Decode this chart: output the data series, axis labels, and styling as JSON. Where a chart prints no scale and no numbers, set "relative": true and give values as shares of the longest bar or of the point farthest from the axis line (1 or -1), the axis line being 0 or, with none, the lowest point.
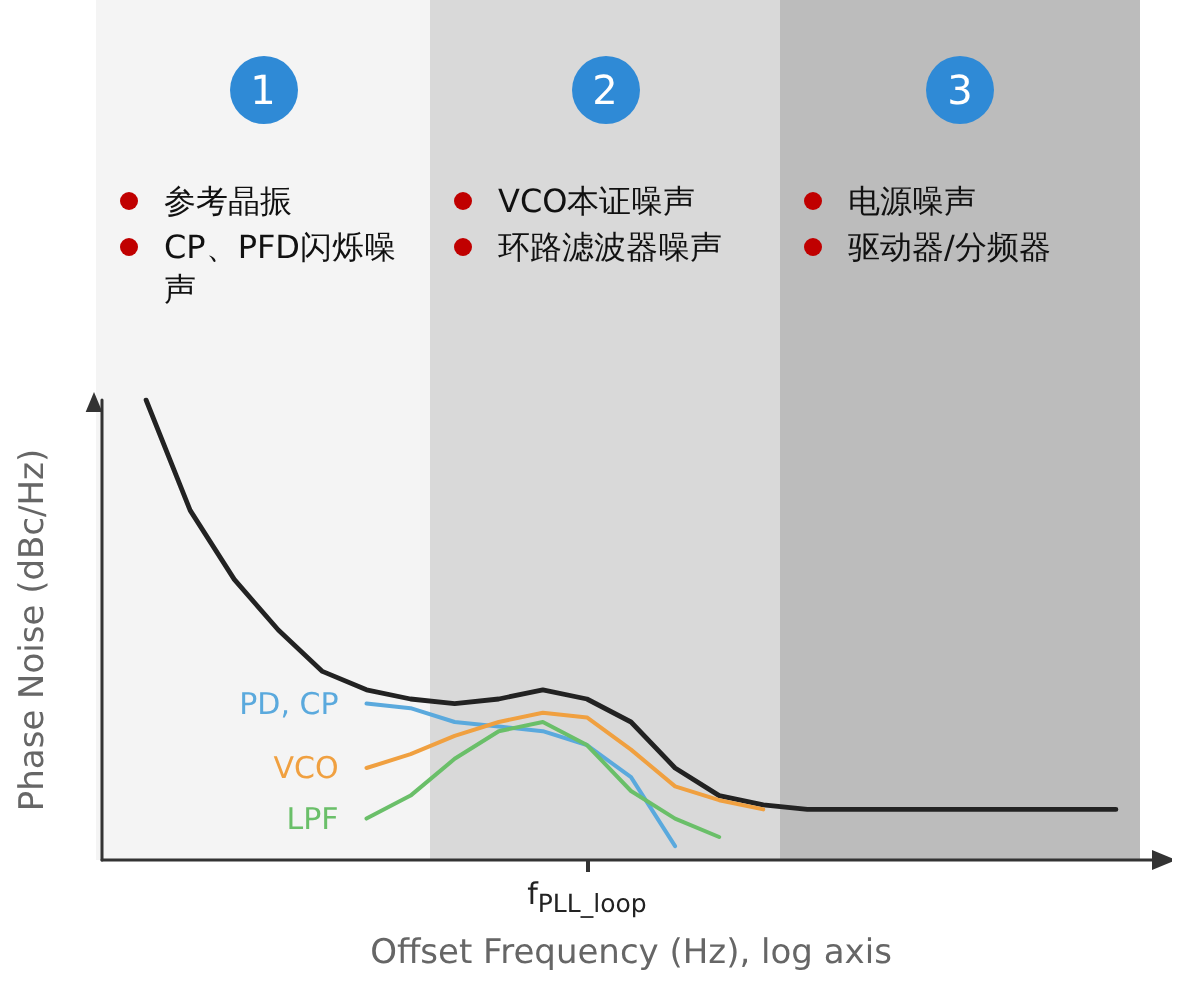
{
  "chart_data": {
    "type": "line",
    "relative": true,
    "xlabel": "Offset Frequency (Hz), log axis",
    "ylabel": "Phase Noise (dBc/Hz)",
    "categories": [
      null,
      null,
      null,
      null,
      null,
      null,
      null,
      null,
      null,
      null,
      null,
      null,
      null,
      null,
      null,
      null,
      null,
      null,
      null,
      null,
      null,
      null,
      null,
      null,
      null
    ],
    "series": [
      {
        "color": "#222222",
        "values": [
          null,
          1.0,
          0.76,
          0.61,
          0.5,
          0.41,
          0.37,
          0.35,
          0.34,
          0.35,
          0.37,
          0.35,
          0.3,
          0.2,
          0.14,
          0.12,
          0.11,
          0.11,
          0.11,
          0.11,
          0.11,
          0.11,
          0.11,
          0.11,
          null
        ]
      },
      {
        "name": "PD, CP",
        "color": "#5aa9dd",
        "values": [
          null,
          null,
          null,
          null,
          null,
          null,
          0.34,
          0.33,
          0.3,
          0.29,
          0.28,
          0.25,
          0.18,
          0.03,
          null,
          null,
          null,
          null,
          null,
          null,
          null,
          null,
          null,
          null,
          null
        ]
      },
      {
        "name": "VCO",
        "color": "#f0a040",
        "values": [
          null,
          null,
          null,
          null,
          null,
          null,
          0.2,
          0.23,
          0.27,
          0.3,
          0.32,
          0.31,
          0.24,
          0.16,
          0.13,
          0.11,
          null,
          null,
          null,
          null,
          null,
          null,
          null,
          null,
          null
        ]
      },
      {
        "name": "LPF",
        "color": "#6abf69",
        "values": [
          null,
          null,
          null,
          null,
          null,
          null,
          0.09,
          0.14,
          0.22,
          0.28,
          0.3,
          0.25,
          0.15,
          0.09,
          0.05,
          null,
          null,
          null,
          null,
          null,
          null,
          null,
          null,
          null,
          null
        ]
      }
    ],
    "annotations": [
      "1",
      "参考晶振",
      "CP、PFD闪烁噪声",
      "2",
      "VCO本证噪声",
      "环路滤波器噪声",
      "3",
      "电源噪声",
      "驱动器/分频器",
      "f$_{PLL_loop}$"
    ],
    "legend": false,
    "grid": false,
    "marker": "none",
    "line_style": "solid"
  }
}
